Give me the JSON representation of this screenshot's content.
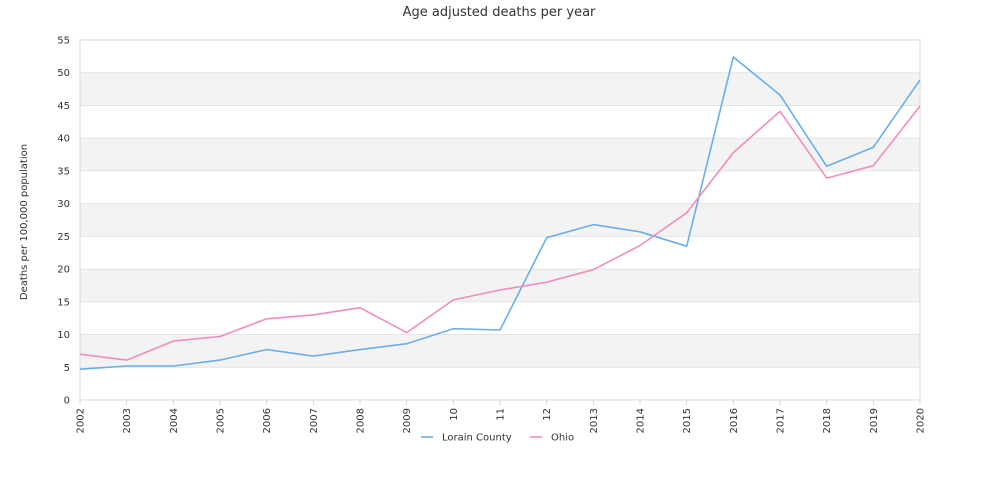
{
  "chart_data": {
    "type": "line",
    "title": "Age adjusted deaths per year",
    "xlabel": "",
    "ylabel": "Deaths per 100,000 population",
    "categories": [
      "2002",
      "2003",
      "2004",
      "2005",
      "2006",
      "2007",
      "2008",
      "2009",
      "10",
      "11",
      "12",
      "2013",
      "2014",
      "2015",
      "2016",
      "2017",
      "2018",
      "2019",
      "2020"
    ],
    "ylim": [
      0,
      55
    ],
    "yticks": [
      0,
      5,
      10,
      15,
      20,
      25,
      30,
      35,
      40,
      45,
      50,
      55
    ],
    "grid": true,
    "banded_background": true,
    "legend_position": "bottom-center",
    "series": [
      {
        "name": "Lorain County",
        "color": "#6aaeea",
        "values": [
          4.7,
          5.2,
          5.2,
          6.1,
          7.7,
          6.7,
          7.7,
          8.6,
          10.9,
          10.7,
          24.8,
          26.8,
          25.7,
          23.5,
          52.4,
          46.6,
          35.7,
          38.6,
          48.9
        ]
      },
      {
        "name": "Ohio",
        "color": "#f28cbf",
        "values": [
          7.0,
          6.1,
          9.0,
          9.7,
          12.4,
          13.0,
          14.1,
          10.3,
          15.3,
          16.8,
          18.0,
          19.9,
          23.6,
          28.6,
          37.8,
          44.1,
          33.9,
          35.8,
          44.9
        ]
      }
    ]
  }
}
